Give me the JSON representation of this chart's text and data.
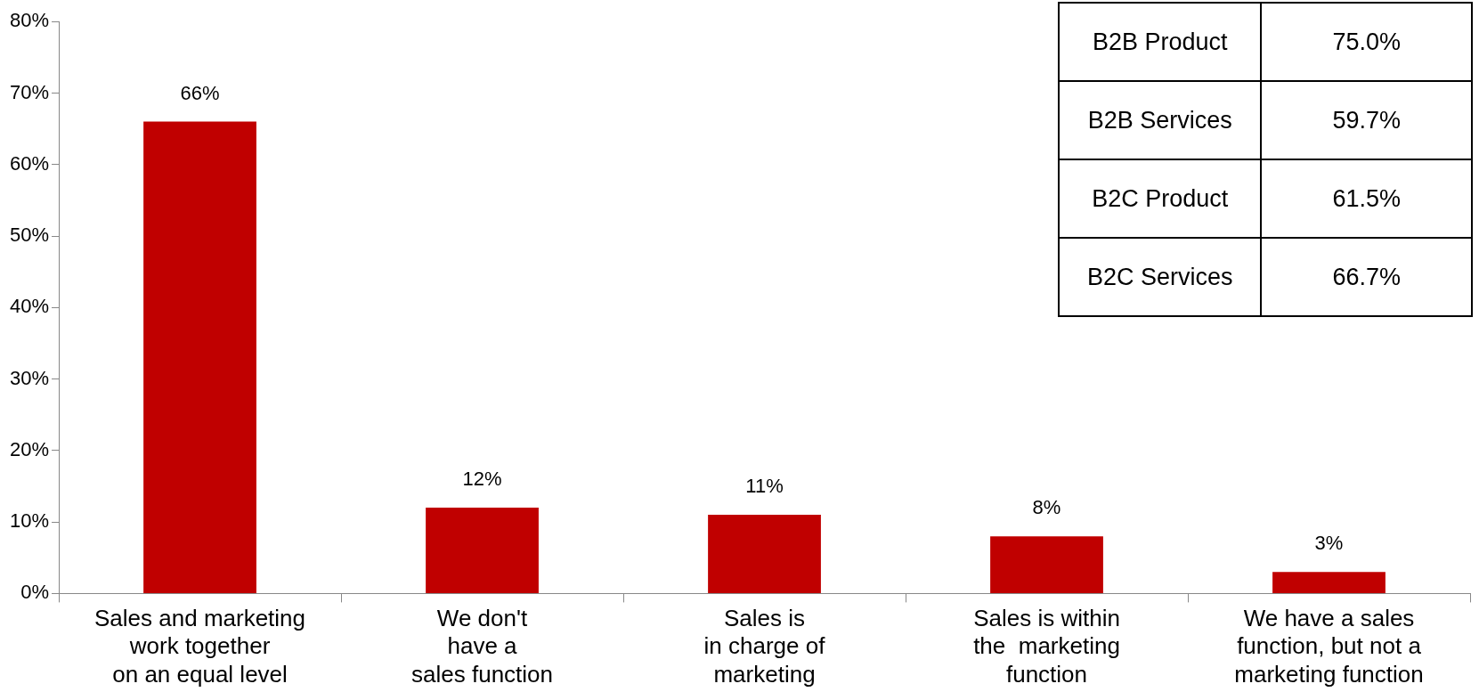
{
  "chart_data": {
    "type": "bar",
    "categories": [
      "Sales and marketing\nwork together\non an equal level",
      "We don't\nhave a\nsales function",
      "Sales is\nin charge of\nmarketing",
      "Sales is within\nthe  marketing\nfunction",
      "We have a sales\nfunction, but not a\nmarketing function"
    ],
    "values": [
      66,
      12,
      11,
      8,
      3
    ],
    "value_labels": [
      "66%",
      "12%",
      "11%",
      "8%",
      "3%"
    ],
    "color": "#c00000",
    "ylim": [
      0,
      80
    ],
    "yticks": [
      {
        "value": 0,
        "label": "0%"
      },
      {
        "value": 10,
        "label": "10%"
      },
      {
        "value": 20,
        "label": "20%"
      },
      {
        "value": 30,
        "label": "30%"
      },
      {
        "value": 40,
        "label": "40%"
      },
      {
        "value": 50,
        "label": "50%"
      },
      {
        "value": 60,
        "label": "60%"
      },
      {
        "value": 70,
        "label": "70%"
      },
      {
        "value": 80,
        "label": "80%"
      }
    ],
    "grid": false,
    "legend": false,
    "annotations": [
      "B2B Product",
      "75.0%",
      "B2B Services",
      "59.7%",
      "B2C Product",
      "61.5%",
      "B2C Services",
      "66.7%"
    ]
  }
}
